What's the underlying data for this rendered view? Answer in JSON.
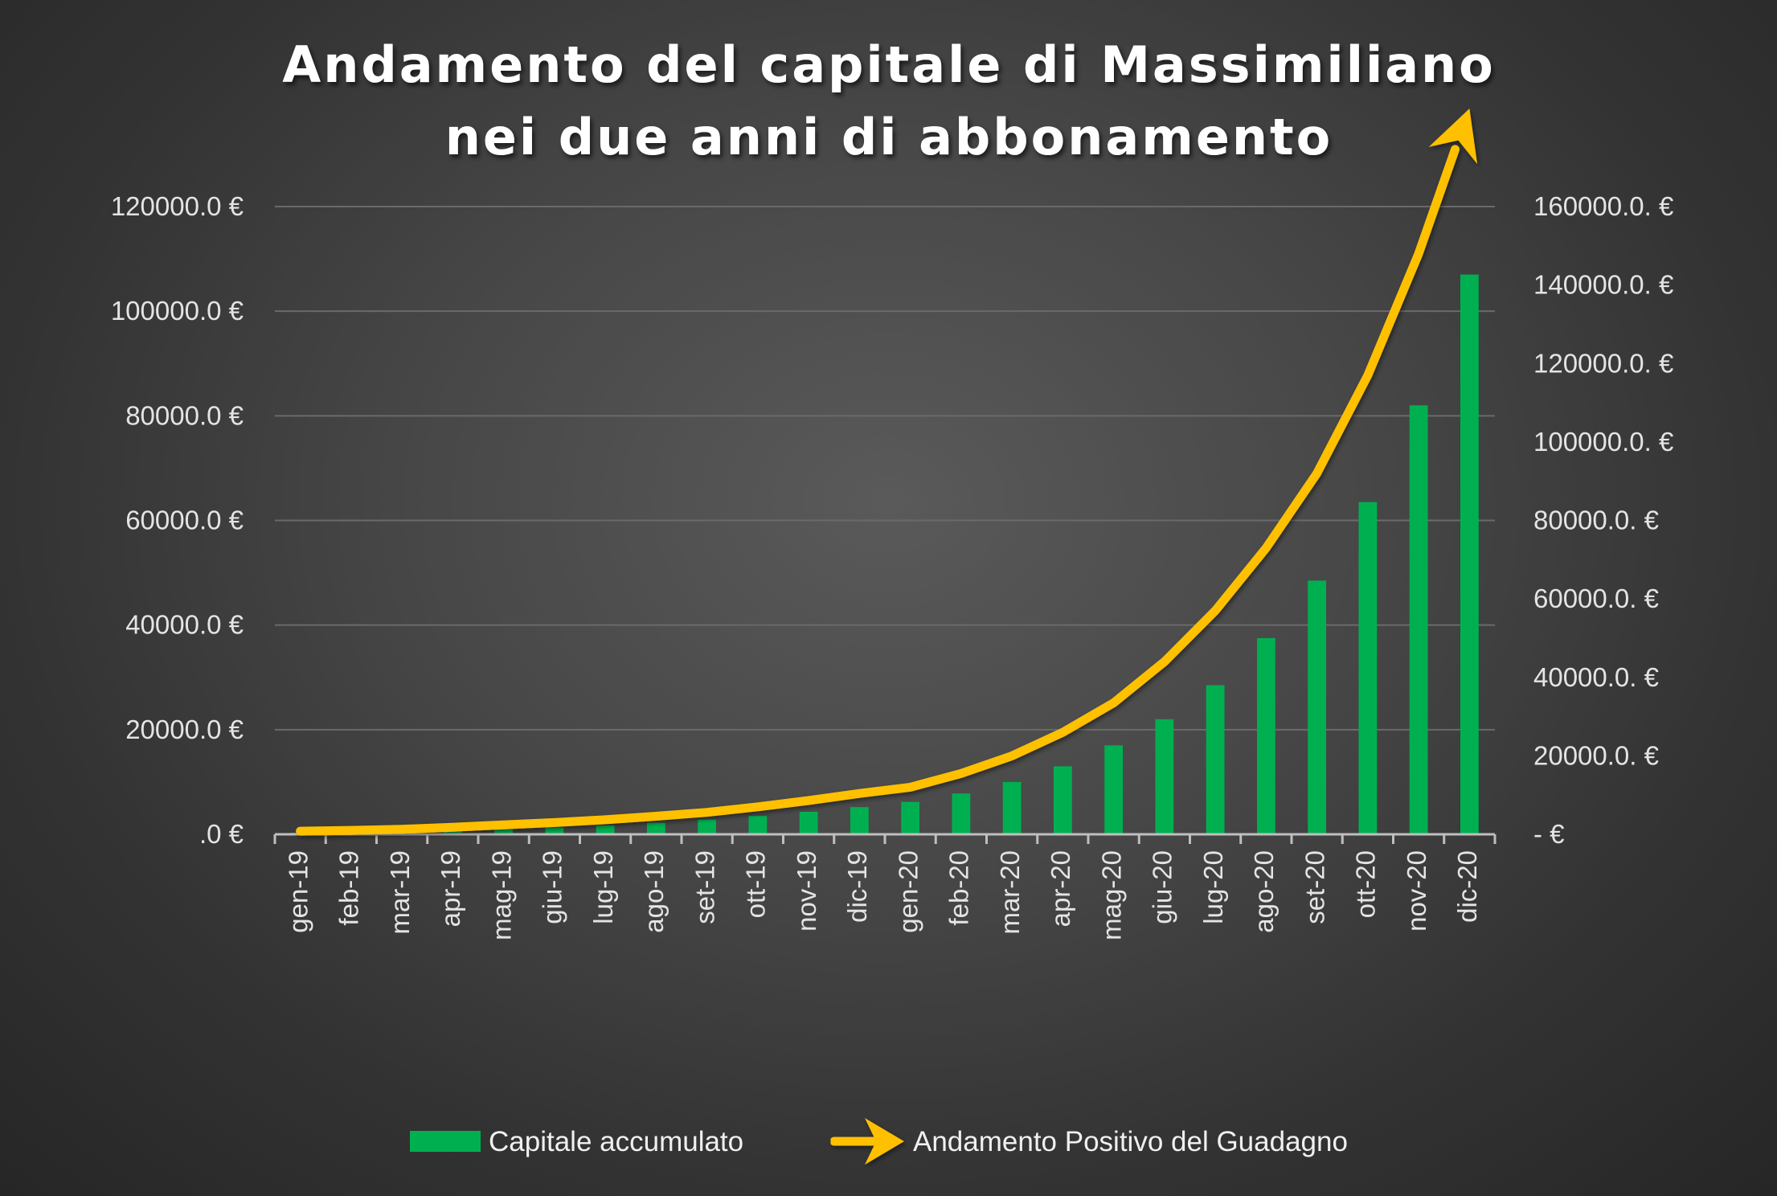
{
  "chart_data": {
    "type": "bar",
    "title_lines": [
      "Andamento del capitale di Massimiliano",
      "nei due anni di abbonamento"
    ],
    "categories": [
      "gen-19",
      "feb-19",
      "mar-19",
      "apr-19",
      "mag-19",
      "giu-19",
      "lug-19",
      "ago-19",
      "set-19",
      "ott-19",
      "nov-19",
      "dic-19",
      "gen-20",
      "feb-20",
      "mar-20",
      "apr-20",
      "mag-20",
      "giu-20",
      "lug-20",
      "ago-20",
      "set-20",
      "ott-20",
      "nov-20",
      "dic-20"
    ],
    "series": [
      {
        "name": "Capitale accumulato",
        "type": "bar",
        "axis": "left",
        "color": "#00b050",
        "values": [
          300,
          450,
          600,
          800,
          1000,
          1300,
          1700,
          2200,
          2800,
          3500,
          4300,
          5200,
          6200,
          7800,
          10000,
          13000,
          17000,
          22000,
          28500,
          37500,
          48500,
          63500,
          82000,
          107000
        ]
      },
      {
        "name": "Andamento Positivo del Guadagno",
        "type": "line-arrow",
        "axis": "right",
        "color": "#ffc000",
        "values": [
          800,
          1000,
          1300,
          1800,
          2400,
          3000,
          3700,
          4600,
          5600,
          7000,
          8600,
          10400,
          12000,
          15500,
          20000,
          26000,
          33500,
          44000,
          57000,
          73000,
          92000,
          117000,
          148000,
          185000
        ]
      }
    ],
    "left_axis": {
      "min": 0,
      "max": 120000,
      "step": 20000,
      "tick_labels": [
        ".0 €",
        "20000.0 €",
        "40000.0 €",
        "60000.0 €",
        "80000.0 €",
        "100000.0 €",
        "120000.0 €"
      ]
    },
    "right_axis": {
      "min": 0,
      "max": 160000,
      "step": 20000,
      "tick_labels": [
        "-   €",
        "20000.0. €",
        "40000.0. €",
        "60000.0. €",
        "80000.0. €",
        "100000.0. €",
        "120000.0. €",
        "140000.0. €",
        "160000.0. €"
      ]
    },
    "grid": true,
    "legend_position": "bottom",
    "colors": {
      "bar": "#00b050",
      "line": "#ffc000",
      "grid": "#6a6a6a",
      "axis": "#bfbfbf"
    }
  }
}
